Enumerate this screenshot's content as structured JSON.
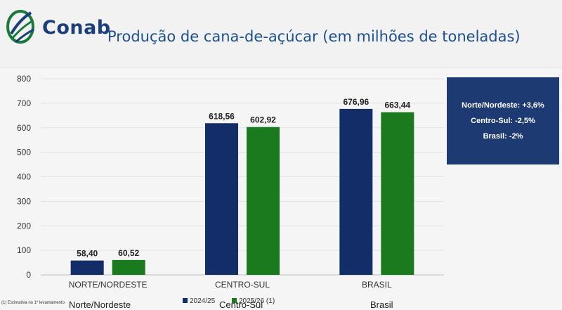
{
  "header": {
    "logo_text": "Conab",
    "title": "Produção de cana-de-açúcar (em milhões de toneladas)"
  },
  "chart_data": {
    "type": "bar",
    "categories": [
      "NORTE/NORDESTE",
      "CENTRO-SUL",
      "BRASIL"
    ],
    "series": [
      {
        "name": "2024/25",
        "values": [
          58.4,
          618.56,
          676.96
        ],
        "labels": [
          "58,40",
          "618,56",
          "676,96"
        ],
        "color": "#132d68"
      },
      {
        "name": "2025/26 (1)",
        "values": [
          60.52,
          602.92,
          663.44
        ],
        "labels": [
          "60,52",
          "602,92",
          "663,44"
        ],
        "color": "#1a7a1e"
      }
    ],
    "ylim": [
      0,
      800
    ],
    "yticks": [
      0,
      100,
      200,
      300,
      400,
      500,
      600,
      700,
      800
    ],
    "grid": true,
    "legend_position": "bottom-center"
  },
  "info_box": {
    "lines": [
      "Norte/Nordeste:  +3,6%",
      "Centro-Sul: -2,5%",
      "Brasil: -2%"
    ],
    "background": "#1e3a73"
  },
  "footnote": "(1) Estimativa no 1º levantamento",
  "ghost_labels": [
    "Norte/Nordeste",
    "Centro-Sul",
    "Brasil"
  ]
}
